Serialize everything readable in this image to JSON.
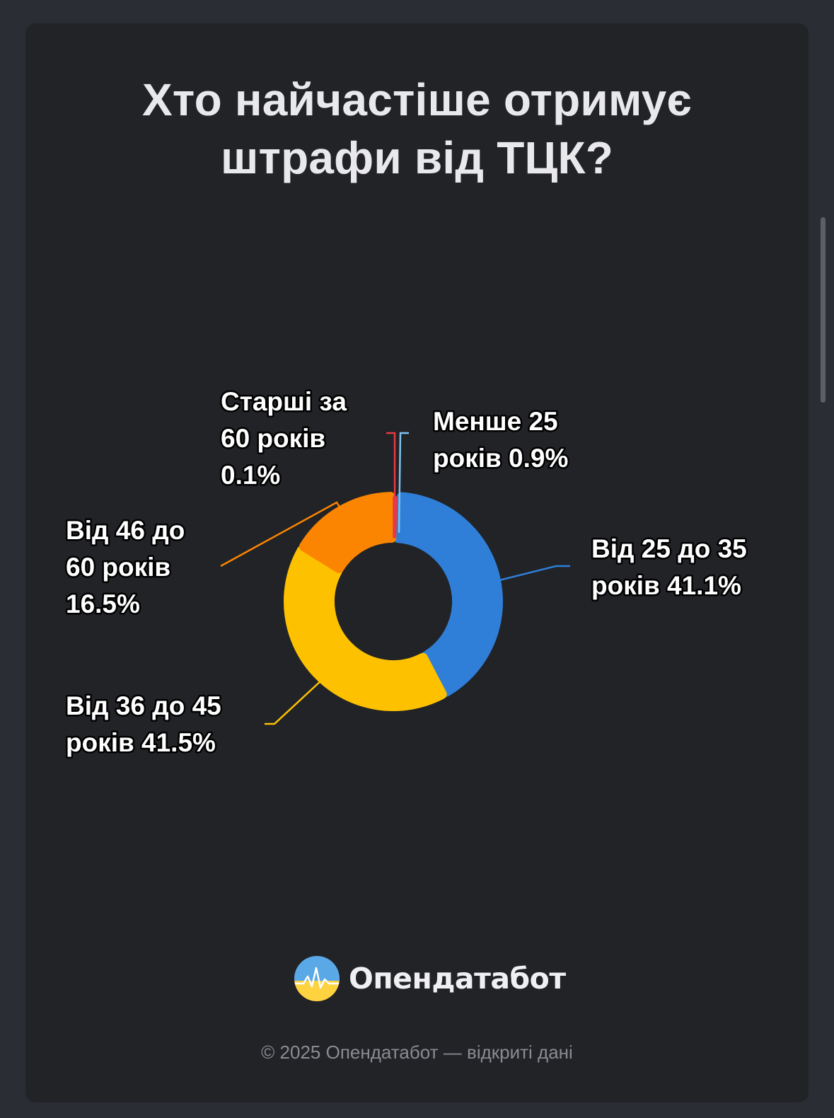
{
  "title_lines": [
    "Хто найчастіше отримує",
    "штрафи від ТЦК?"
  ],
  "chart_data": {
    "type": "pie",
    "title": "Хто найчастіше отримує штрафи від ТЦК?",
    "slices": [
      {
        "name": "Менше 25 років",
        "value": 0.9,
        "color": "#7fc3ee",
        "label_lines": [
          "Менше 25",
          "років 0.9%"
        ]
      },
      {
        "name": "Від 25 до 35 років",
        "value": 41.1,
        "color": "#2f7fd8",
        "label_lines": [
          "Від 25 до 35",
          "років 41.1%"
        ]
      },
      {
        "name": "Від 36 до 45 років",
        "value": 41.5,
        "color": "#fdc100",
        "label_lines": [
          "Від 36 до 45",
          "років 41.5%"
        ]
      },
      {
        "name": "Від 46 до 60 років",
        "value": 16.5,
        "color": "#fb8500",
        "label_lines": [
          "Від 46 до",
          "60 років",
          "16.5%"
        ]
      },
      {
        "name": "Старші за 60 років",
        "value": 0.1,
        "color": "#e63946",
        "label_lines": [
          "Старші за",
          "60 років",
          "0.1%"
        ]
      }
    ]
  },
  "brand": {
    "name": "Опендатабот",
    "logo_icon": "opendatabot-logo-icon"
  },
  "footer": "© 2025 Опендатабот — відкриті дані"
}
